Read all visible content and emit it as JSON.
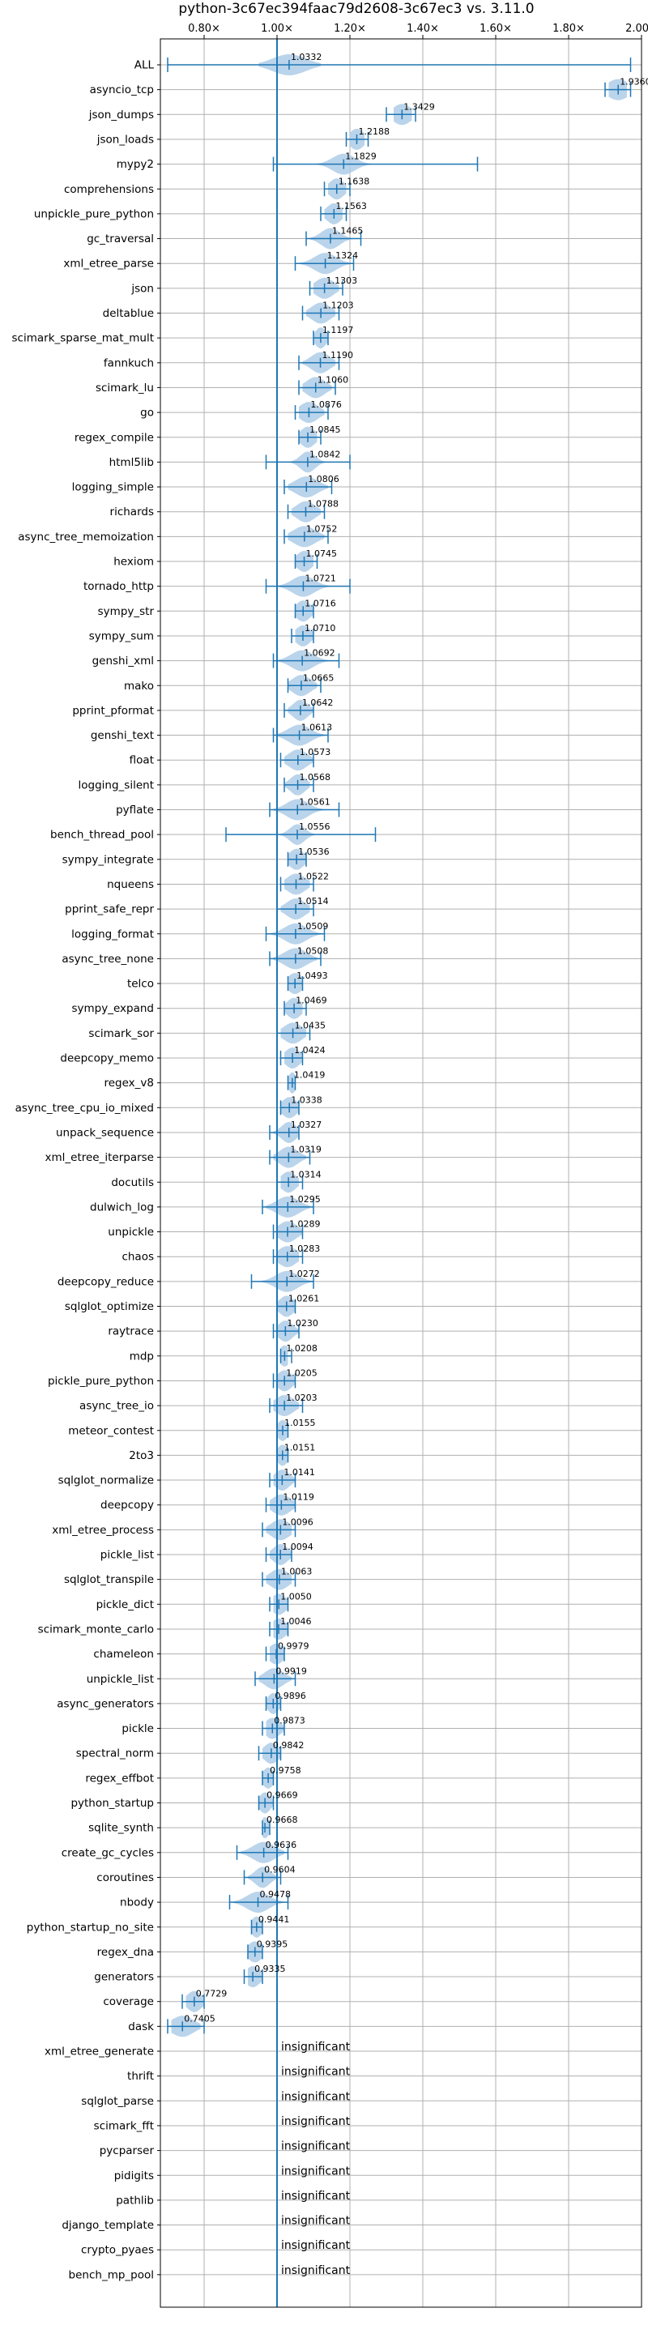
{
  "chart_data": {
    "type": "violin",
    "title": "python-3c67ec394faac79d2608-3c67ec3 vs. 3.11.0",
    "xlim": [
      0.68,
      2.0
    ],
    "xticks": [
      0.8,
      1.0,
      1.2,
      1.4,
      1.6,
      1.8,
      2.0
    ],
    "xtick_labels": [
      "0.80×",
      "1.00×",
      "1.20×",
      "1.40×",
      "1.60×",
      "1.80×",
      "2.00×"
    ],
    "reference_line": 1.0,
    "grid": true,
    "colors": {
      "line": "#1f77b4",
      "violin": "#aecde8"
    },
    "insignificant_text": "insignificant",
    "benchmarks": [
      {
        "name": "ALL",
        "value": 1.0332,
        "label": "1.0332",
        "min": 0.7,
        "max": 1.97,
        "spread": 0.045,
        "lo": 0.95,
        "hi": 1.12
      },
      {
        "name": "asyncio_tcp",
        "value": 1.936,
        "label": "1.9360",
        "min": 1.9,
        "max": 1.97,
        "spread": 0.03,
        "lo": 1.91,
        "hi": 1.96
      },
      {
        "name": "json_dumps",
        "value": 1.3429,
        "label": "1.3429",
        "min": 1.3,
        "max": 1.38,
        "spread": 0.025,
        "lo": 1.32,
        "hi": 1.37
      },
      {
        "name": "json_loads",
        "value": 1.2188,
        "label": "1.2188",
        "min": 1.19,
        "max": 1.25,
        "spread": 0.02,
        "lo": 1.2,
        "hi": 1.24
      },
      {
        "name": "mypy2",
        "value": 1.1829,
        "label": "1.1829",
        "min": 0.99,
        "max": 1.55,
        "spread": 0.03,
        "lo": 1.0,
        "hi": 1.55
      },
      {
        "name": "comprehensions",
        "value": 1.1638,
        "label": "1.1638",
        "min": 1.13,
        "max": 1.2,
        "spread": 0.02,
        "lo": 1.14,
        "hi": 1.19
      },
      {
        "name": "unpickle_pure_python",
        "value": 1.1563,
        "label": "1.1563",
        "min": 1.12,
        "max": 1.19,
        "spread": 0.02,
        "lo": 1.13,
        "hi": 1.18
      },
      {
        "name": "gc_traversal",
        "value": 1.1465,
        "label": "1.1465",
        "min": 1.08,
        "max": 1.23,
        "spread": 0.025,
        "lo": 1.09,
        "hi": 1.22
      },
      {
        "name": "xml_etree_parse",
        "value": 1.1324,
        "label": "1.1324",
        "min": 1.05,
        "max": 1.21,
        "spread": 0.03,
        "lo": 1.06,
        "hi": 1.2
      },
      {
        "name": "json",
        "value": 1.1303,
        "label": "1.1303",
        "min": 1.09,
        "max": 1.18,
        "spread": 0.025,
        "lo": 1.1,
        "hi": 1.17
      },
      {
        "name": "deltablue",
        "value": 1.1203,
        "label": "1.1203",
        "min": 1.07,
        "max": 1.17,
        "spread": 0.025,
        "lo": 1.08,
        "hi": 1.16
      },
      {
        "name": "scimark_sparse_mat_mult",
        "value": 1.1197,
        "label": "1.1197",
        "min": 1.1,
        "max": 1.14,
        "spread": 0.015,
        "lo": 1.1,
        "hi": 1.14
      },
      {
        "name": "fannkuch",
        "value": 1.119,
        "label": "1.1190",
        "min": 1.06,
        "max": 1.17,
        "spread": 0.025,
        "lo": 1.07,
        "hi": 1.16
      },
      {
        "name": "scimark_lu",
        "value": 1.106,
        "label": "1.1060",
        "min": 1.06,
        "max": 1.16,
        "spread": 0.025,
        "lo": 1.07,
        "hi": 1.15
      },
      {
        "name": "go",
        "value": 1.0876,
        "label": "1.0876",
        "min": 1.05,
        "max": 1.14,
        "spread": 0.025,
        "lo": 1.06,
        "hi": 1.13
      },
      {
        "name": "regex_compile",
        "value": 1.0845,
        "label": "1.0845",
        "min": 1.06,
        "max": 1.12,
        "spread": 0.02,
        "lo": 1.06,
        "hi": 1.11
      },
      {
        "name": "html5lib",
        "value": 1.0842,
        "label": "1.0842",
        "min": 0.97,
        "max": 1.2,
        "spread": 0.02,
        "lo": 0.98,
        "hi": 1.19
      },
      {
        "name": "logging_simple",
        "value": 1.0806,
        "label": "1.0806",
        "min": 1.02,
        "max": 1.15,
        "spread": 0.03,
        "lo": 1.03,
        "hi": 1.14
      },
      {
        "name": "richards",
        "value": 1.0788,
        "label": "1.0788",
        "min": 1.03,
        "max": 1.13,
        "spread": 0.025,
        "lo": 1.04,
        "hi": 1.12
      },
      {
        "name": "async_tree_memoization",
        "value": 1.0752,
        "label": "1.0752",
        "min": 1.02,
        "max": 1.14,
        "spread": 0.03,
        "lo": 1.03,
        "hi": 1.13
      },
      {
        "name": "hexiom",
        "value": 1.0745,
        "label": "1.0745",
        "min": 1.05,
        "max": 1.11,
        "spread": 0.02,
        "lo": 1.05,
        "hi": 1.1
      },
      {
        "name": "tornado_http",
        "value": 1.0721,
        "label": "1.0721",
        "min": 0.97,
        "max": 1.2,
        "spread": 0.03,
        "lo": 0.98,
        "hi": 1.19
      },
      {
        "name": "sympy_str",
        "value": 1.0716,
        "label": "1.0716",
        "min": 1.05,
        "max": 1.1,
        "spread": 0.02,
        "lo": 1.05,
        "hi": 1.1
      },
      {
        "name": "sympy_sum",
        "value": 1.071,
        "label": "1.0710",
        "min": 1.04,
        "max": 1.1,
        "spread": 0.02,
        "lo": 1.05,
        "hi": 1.1
      },
      {
        "name": "genshi_xml",
        "value": 1.0692,
        "label": "1.0692",
        "min": 0.99,
        "max": 1.17,
        "spread": 0.03,
        "lo": 1.0,
        "hi": 1.16
      },
      {
        "name": "mako",
        "value": 1.0665,
        "label": "1.0665",
        "min": 1.03,
        "max": 1.12,
        "spread": 0.025,
        "lo": 1.03,
        "hi": 1.11
      },
      {
        "name": "pprint_pformat",
        "value": 1.0642,
        "label": "1.0642",
        "min": 1.02,
        "max": 1.1,
        "spread": 0.02,
        "lo": 1.03,
        "hi": 1.1
      },
      {
        "name": "genshi_text",
        "value": 1.0613,
        "label": "1.0613",
        "min": 0.99,
        "max": 1.14,
        "spread": 0.03,
        "lo": 1.0,
        "hi": 1.13
      },
      {
        "name": "float",
        "value": 1.0573,
        "label": "1.0573",
        "min": 1.01,
        "max": 1.1,
        "spread": 0.025,
        "lo": 1.02,
        "hi": 1.1
      },
      {
        "name": "logging_silent",
        "value": 1.0568,
        "label": "1.0568",
        "min": 1.02,
        "max": 1.1,
        "spread": 0.02,
        "lo": 1.02,
        "hi": 1.09
      },
      {
        "name": "pyflate",
        "value": 1.0561,
        "label": "1.0561",
        "min": 0.98,
        "max": 1.17,
        "spread": 0.03,
        "lo": 0.99,
        "hi": 1.16
      },
      {
        "name": "bench_thread_pool",
        "value": 1.0556,
        "label": "1.0556",
        "min": 0.86,
        "max": 1.27,
        "spread": 0.02,
        "lo": 0.87,
        "hi": 1.26
      },
      {
        "name": "sympy_integrate",
        "value": 1.0536,
        "label": "1.0536",
        "min": 1.03,
        "max": 1.08,
        "spread": 0.02,
        "lo": 1.03,
        "hi": 1.08
      },
      {
        "name": "nqueens",
        "value": 1.0522,
        "label": "1.0522",
        "min": 1.01,
        "max": 1.1,
        "spread": 0.025,
        "lo": 1.02,
        "hi": 1.09
      },
      {
        "name": "pprint_safe_repr",
        "value": 1.0514,
        "label": "1.0514",
        "min": 1.0,
        "max": 1.1,
        "spread": 0.025,
        "lo": 1.01,
        "hi": 1.09
      },
      {
        "name": "logging_format",
        "value": 1.0509,
        "label": "1.0509",
        "min": 0.97,
        "max": 1.13,
        "spread": 0.03,
        "lo": 0.98,
        "hi": 1.12
      },
      {
        "name": "async_tree_none",
        "value": 1.0508,
        "label": "1.0508",
        "min": 0.98,
        "max": 1.12,
        "spread": 0.03,
        "lo": 0.99,
        "hi": 1.11
      },
      {
        "name": "telco",
        "value": 1.0493,
        "label": "1.0493",
        "min": 1.03,
        "max": 1.07,
        "spread": 0.02,
        "lo": 1.03,
        "hi": 1.07
      },
      {
        "name": "sympy_expand",
        "value": 1.0469,
        "label": "1.0469",
        "min": 1.02,
        "max": 1.08,
        "spread": 0.02,
        "lo": 1.02,
        "hi": 1.07
      },
      {
        "name": "scimark_sor",
        "value": 1.0435,
        "label": "1.0435",
        "min": 1.0,
        "max": 1.09,
        "spread": 0.025,
        "lo": 1.01,
        "hi": 1.08
      },
      {
        "name": "deepcopy_memo",
        "value": 1.0424,
        "label": "1.0424",
        "min": 1.01,
        "max": 1.07,
        "spread": 0.02,
        "lo": 1.02,
        "hi": 1.07
      },
      {
        "name": "regex_v8",
        "value": 1.0419,
        "label": "1.0419",
        "min": 1.03,
        "max": 1.05,
        "spread": 0.01,
        "lo": 1.03,
        "hi": 1.05
      },
      {
        "name": "async_tree_cpu_io_mixed",
        "value": 1.0338,
        "label": "1.0338",
        "min": 1.01,
        "max": 1.06,
        "spread": 0.02,
        "lo": 1.01,
        "hi": 1.06
      },
      {
        "name": "unpack_sequence",
        "value": 1.0327,
        "label": "1.0327",
        "min": 0.98,
        "max": 1.06,
        "spread": 0.02,
        "lo": 0.99,
        "hi": 1.06
      },
      {
        "name": "xml_etree_iterparse",
        "value": 1.0319,
        "label": "1.0319",
        "min": 0.98,
        "max": 1.09,
        "spread": 0.025,
        "lo": 0.99,
        "hi": 1.08
      },
      {
        "name": "docutils",
        "value": 1.0314,
        "label": "1.0314",
        "min": 1.0,
        "max": 1.07,
        "spread": 0.02,
        "lo": 1.01,
        "hi": 1.06
      },
      {
        "name": "dulwich_log",
        "value": 1.0295,
        "label": "1.0295",
        "min": 0.96,
        "max": 1.1,
        "spread": 0.03,
        "lo": 0.97,
        "hi": 1.09
      },
      {
        "name": "unpickle",
        "value": 1.0289,
        "label": "1.0289",
        "min": 0.99,
        "max": 1.07,
        "spread": 0.025,
        "lo": 1.0,
        "hi": 1.07
      },
      {
        "name": "chaos",
        "value": 1.0283,
        "label": "1.0283",
        "min": 0.99,
        "max": 1.07,
        "spread": 0.025,
        "lo": 1.0,
        "hi": 1.06
      },
      {
        "name": "deepcopy_reduce",
        "value": 1.0272,
        "label": "1.0272",
        "min": 0.93,
        "max": 1.1,
        "spread": 0.03,
        "lo": 0.94,
        "hi": 1.1
      },
      {
        "name": "sqlglot_optimize",
        "value": 1.0261,
        "label": "1.0261",
        "min": 1.0,
        "max": 1.05,
        "spread": 0.02,
        "lo": 1.0,
        "hi": 1.05
      },
      {
        "name": "raytrace",
        "value": 1.023,
        "label": "1.0230",
        "min": 0.99,
        "max": 1.06,
        "spread": 0.02,
        "lo": 1.0,
        "hi": 1.06
      },
      {
        "name": "mdp",
        "value": 1.0208,
        "label": "1.0208",
        "min": 1.01,
        "max": 1.04,
        "spread": 0.015,
        "lo": 1.01,
        "hi": 1.03
      },
      {
        "name": "pickle_pure_python",
        "value": 1.0205,
        "label": "1.0205",
        "min": 0.99,
        "max": 1.05,
        "spread": 0.02,
        "lo": 1.0,
        "hi": 1.05
      },
      {
        "name": "async_tree_io",
        "value": 1.0203,
        "label": "1.0203",
        "min": 0.98,
        "max": 1.07,
        "spread": 0.025,
        "lo": 0.99,
        "hi": 1.06
      },
      {
        "name": "meteor_contest",
        "value": 1.0155,
        "label": "1.0155",
        "min": 1.0,
        "max": 1.03,
        "spread": 0.015,
        "lo": 1.0,
        "hi": 1.03
      },
      {
        "name": "2to3",
        "value": 1.0151,
        "label": "1.0151",
        "min": 1.0,
        "max": 1.03,
        "spread": 0.015,
        "lo": 1.0,
        "hi": 1.03
      },
      {
        "name": "sqlglot_normalize",
        "value": 1.0141,
        "label": "1.0141",
        "min": 0.98,
        "max": 1.05,
        "spread": 0.02,
        "lo": 0.99,
        "hi": 1.05
      },
      {
        "name": "deepcopy",
        "value": 1.0119,
        "label": "1.0119",
        "min": 0.97,
        "max": 1.05,
        "spread": 0.025,
        "lo": 0.98,
        "hi": 1.05
      },
      {
        "name": "xml_etree_process",
        "value": 1.0096,
        "label": "1.0096",
        "min": 0.96,
        "max": 1.05,
        "spread": 0.025,
        "lo": 0.97,
        "hi": 1.04
      },
      {
        "name": "pickle_list",
        "value": 1.0094,
        "label": "1.0094",
        "min": 0.97,
        "max": 1.04,
        "spread": 0.02,
        "lo": 0.98,
        "hi": 1.04
      },
      {
        "name": "sqlglot_transpile",
        "value": 1.0063,
        "label": "1.0063",
        "min": 0.96,
        "max": 1.05,
        "spread": 0.025,
        "lo": 0.97,
        "hi": 1.04
      },
      {
        "name": "pickle_dict",
        "value": 1.005,
        "label": "1.0050",
        "min": 0.98,
        "max": 1.03,
        "spread": 0.02,
        "lo": 0.99,
        "hi": 1.03
      },
      {
        "name": "scimark_monte_carlo",
        "value": 1.0046,
        "label": "1.0046",
        "min": 0.98,
        "max": 1.03,
        "spread": 0.02,
        "lo": 0.99,
        "hi": 1.03
      },
      {
        "name": "chameleon",
        "value": 0.9979,
        "label": "0.9979",
        "min": 0.97,
        "max": 1.02,
        "spread": 0.02,
        "lo": 0.98,
        "hi": 1.02
      },
      {
        "name": "unpickle_list",
        "value": 0.9919,
        "label": "0.9919",
        "min": 0.94,
        "max": 1.05,
        "spread": 0.025,
        "lo": 0.95,
        "hi": 1.04
      },
      {
        "name": "async_generators",
        "value": 0.9896,
        "label": "0.9896",
        "min": 0.97,
        "max": 1.01,
        "spread": 0.015,
        "lo": 0.97,
        "hi": 1.01
      },
      {
        "name": "pickle",
        "value": 0.9873,
        "label": "0.9873",
        "min": 0.96,
        "max": 1.02,
        "spread": 0.02,
        "lo": 0.97,
        "hi": 1.02
      },
      {
        "name": "spectral_norm",
        "value": 0.9842,
        "label": "0.9842",
        "min": 0.95,
        "max": 1.01,
        "spread": 0.02,
        "lo": 0.96,
        "hi": 1.01
      },
      {
        "name": "regex_effbot",
        "value": 0.9758,
        "label": "0.9758",
        "min": 0.96,
        "max": 0.99,
        "spread": 0.015,
        "lo": 0.96,
        "hi": 0.99
      },
      {
        "name": "python_startup",
        "value": 0.9669,
        "label": "0.9669",
        "min": 0.95,
        "max": 0.99,
        "spread": 0.015,
        "lo": 0.95,
        "hi": 0.99
      },
      {
        "name": "sqlite_synth",
        "value": 0.9668,
        "label": "0.9668",
        "min": 0.96,
        "max": 0.98,
        "spread": 0.012,
        "lo": 0.96,
        "hi": 0.98
      },
      {
        "name": "create_gc_cycles",
        "value": 0.9636,
        "label": "0.9636",
        "min": 0.89,
        "max": 1.03,
        "spread": 0.03,
        "lo": 0.9,
        "hi": 1.02
      },
      {
        "name": "coroutines",
        "value": 0.9604,
        "label": "0.9604",
        "min": 0.91,
        "max": 1.01,
        "spread": 0.02,
        "lo": 0.92,
        "hi": 1.0
      },
      {
        "name": "nbody",
        "value": 0.9478,
        "label": "0.9478",
        "min": 0.87,
        "max": 1.03,
        "spread": 0.03,
        "lo": 0.88,
        "hi": 1.02
      },
      {
        "name": "python_startup_no_site",
        "value": 0.9441,
        "label": "0.9441",
        "min": 0.93,
        "max": 0.96,
        "spread": 0.015,
        "lo": 0.93,
        "hi": 0.96
      },
      {
        "name": "regex_dna",
        "value": 0.9395,
        "label": "0.9395",
        "min": 0.92,
        "max": 0.96,
        "spread": 0.02,
        "lo": 0.92,
        "hi": 0.96
      },
      {
        "name": "generators",
        "value": 0.9335,
        "label": "0.9335",
        "min": 0.91,
        "max": 0.96,
        "spread": 0.02,
        "lo": 0.92,
        "hi": 0.96
      },
      {
        "name": "coverage",
        "value": 0.7729,
        "label": "0.7729",
        "min": 0.74,
        "max": 0.8,
        "spread": 0.02,
        "lo": 0.75,
        "hi": 0.8
      },
      {
        "name": "dask",
        "value": 0.7405,
        "label": "0.7405",
        "min": 0.7,
        "max": 0.8,
        "spread": 0.03,
        "lo": 0.71,
        "hi": 0.79
      },
      {
        "name": "xml_etree_generate",
        "significant": false
      },
      {
        "name": "thrift",
        "significant": false
      },
      {
        "name": "sqlglot_parse",
        "significant": false
      },
      {
        "name": "scimark_fft",
        "significant": false
      },
      {
        "name": "pycparser",
        "significant": false
      },
      {
        "name": "pidigits",
        "significant": false
      },
      {
        "name": "pathlib",
        "significant": false
      },
      {
        "name": "django_template",
        "significant": false
      },
      {
        "name": "crypto_pyaes",
        "significant": false
      },
      {
        "name": "bench_mp_pool",
        "significant": false
      }
    ]
  }
}
